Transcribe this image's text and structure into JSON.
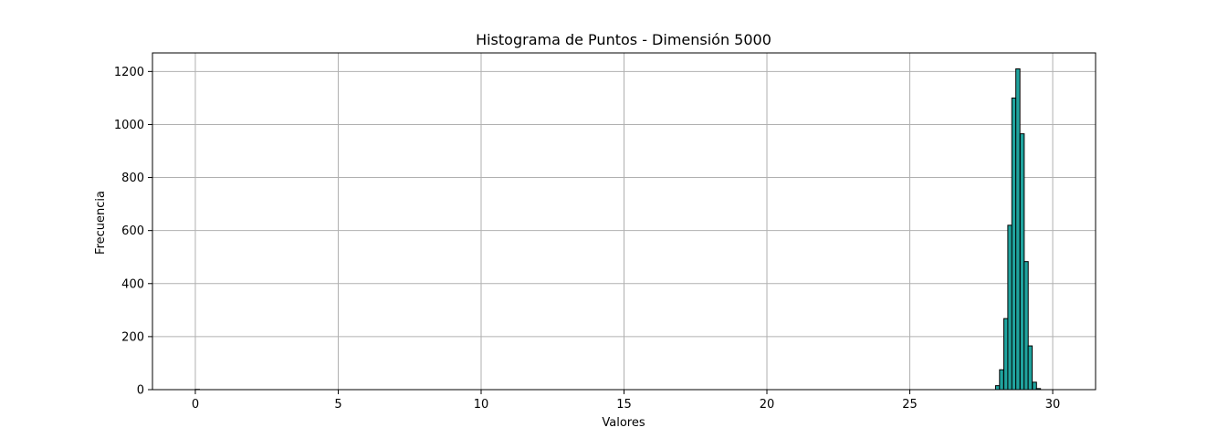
{
  "chart_data": {
    "type": "bar",
    "title": "Histograma de Puntos - Dimensión 5000",
    "xlabel": "Valores",
    "ylabel": "Frecuencia",
    "xlim": [
      -1.5,
      31.5
    ],
    "ylim": [
      0,
      1270
    ],
    "xticks": [
      0,
      5,
      10,
      15,
      20,
      25,
      30
    ],
    "yticks": [
      0,
      200,
      400,
      600,
      800,
      1000,
      1200
    ],
    "grid": true,
    "bar_color": "#20a39e",
    "edge_color": "#000000",
    "bin_width": 0.143,
    "bins": [
      {
        "x": 0.0,
        "value": 1
      },
      {
        "x": 28.0,
        "value": 15
      },
      {
        "x": 28.14,
        "value": 75
      },
      {
        "x": 28.29,
        "value": 268
      },
      {
        "x": 28.43,
        "value": 620
      },
      {
        "x": 28.57,
        "value": 1100
      },
      {
        "x": 28.71,
        "value": 1210
      },
      {
        "x": 28.86,
        "value": 965
      },
      {
        "x": 29.0,
        "value": 483
      },
      {
        "x": 29.14,
        "value": 165
      },
      {
        "x": 29.29,
        "value": 28
      },
      {
        "x": 29.43,
        "value": 4
      }
    ]
  }
}
